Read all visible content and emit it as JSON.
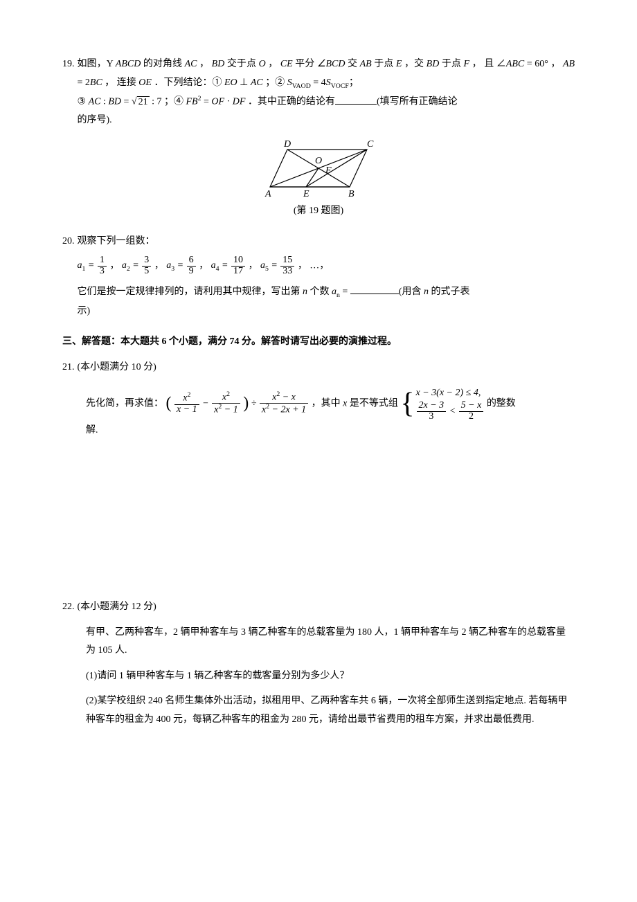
{
  "p19": {
    "num": "19.",
    "line1a": "如图，Y ",
    "m_ABCD": "ABCD",
    "line1b": " 的对角线 ",
    "m_AC": "AC",
    "line1c": " ， ",
    "m_BD": "BD",
    "line1d": " 交于点 ",
    "m_O": "O",
    "line1e": " ， ",
    "m_CE": "CE",
    "line1f": " 平分 ",
    "m_angBCD": "∠BCD",
    "line1g": " 交 ",
    "m_AB": "AB",
    "line1h": " 于点 ",
    "m_E": "E",
    "line1i": " ，交 ",
    "m_BD2": "BD",
    "line1j": " 于点",
    "line2a": "F",
    "line2b": " ， 且 ∠",
    "m_ABC": "ABC",
    "line2c": " = 60° ， ",
    "m_AB2": "AB",
    "line2d": " = 2",
    "m_BC": "BC",
    "line2e": " ， 连接 ",
    "m_OE": "OE",
    "line2f": " ．下列结论：① ",
    "m_EO": "EO",
    "line2g": " ⊥ ",
    "m_AC2": "AC",
    "line2h": " ；② ",
    "m_S1a": "S",
    "m_S1b": "VAOD",
    "line2i": " = 4",
    "m_S2a": "S",
    "m_S2b": "VOCF",
    "line2j": "；",
    "line3a": "③ ",
    "m_AC3": "AC",
    "line3b": " : ",
    "m_BD3": "BD",
    "line3c": " = ",
    "sqrt21": "21",
    "line3d": " : 7 ；④ ",
    "m_FB": "FB",
    "sup2": "2",
    "line3e": " = ",
    "m_OF": "OF",
    "line3f": " · ",
    "m_DF": "DF",
    "line3g": " ．其中正确的结论有",
    "line3h": "(填写所有正确结论",
    "line4": "的序号).",
    "caption": "(第 19 题图)",
    "fig": {
      "D": "D",
      "C": "C",
      "A": "A",
      "E": "E",
      "B": "B",
      "O": "O",
      "F": "F",
      "stroke": "#000000",
      "fill": "#ffffff"
    }
  },
  "p20": {
    "num": "20.",
    "line1": "观察下列一组数：",
    "seq": [
      {
        "name": "a",
        "sub": "1",
        "num": "1",
        "den": "3"
      },
      {
        "name": "a",
        "sub": "2",
        "num": "3",
        "den": "5"
      },
      {
        "name": "a",
        "sub": "3",
        "num": "6",
        "den": "9"
      },
      {
        "name": "a",
        "sub": "4",
        "num": "10",
        "den": "17"
      },
      {
        "name": "a",
        "sub": "5",
        "num": "15",
        "den": "33"
      }
    ],
    "sep": " ， ",
    "dots": "…，",
    "line2a": "它们是按一定规律排列的，请利用其中规律，写出第 ",
    "m_n": "n",
    "line2b": " 个数 ",
    "m_an_a": "a",
    "m_an_n": "n",
    "line2c": " = ",
    "line2d": "(用含 ",
    "line2e": " 的式子表",
    "line3": "示)"
  },
  "section3": "三、解答题：本大题共 6 个小题，满分 74 分。解答时请写出必要的演推过程。",
  "p21": {
    "num": "21.",
    "points": "(本小题满分 10 分)",
    "lead": "先化简，再求值：",
    "expr": {
      "f1_num": "x",
      "f1_num_sup": "2",
      "f1_den": "x − 1",
      "f2_num": "x",
      "f2_num_sup": "2",
      "f2_den_a": "x",
      "f2_den_sup": "2",
      "f2_den_b": " − 1",
      "div": " ÷ ",
      "f3_num_a": "x",
      "f3_num_sup": "2",
      "f3_num_b": " − x",
      "f3_den_a": "x",
      "f3_den_sup": "2",
      "f3_den_b": " − 2x + 1"
    },
    "mid": " ，其中 ",
    "m_x": "x",
    "mid2": " 是不等式组 ",
    "sys_line1": "x − 3(x − 2) ≤ 4,",
    "sys_f1_num": "2x − 3",
    "sys_f1_den": "3",
    "sys_lt": " < ",
    "sys_f2_num": "5 − x",
    "sys_f2_den": "2",
    "tail": " 的整数",
    "line2": "解."
  },
  "p22": {
    "num": "22.",
    "points": "(本小题满分 12 分)",
    "para1": "有甲、乙两种客车，2 辆甲种客车与 3 辆乙种客车的总载客量为 180 人，1 辆甲种客车与 2 辆乙种客车的总载客量为 105 人.",
    "q1": "(1)请问 1 辆甲种客车与 1 辆乙种客车的载客量分别为多少人？",
    "q2": "(2)某学校组织 240 名师生集体外出活动，拟租用甲、乙两种客车共 6 辆，一次将全部师生送到指定地点. 若每辆甲种客车的租金为 400 元，每辆乙种客车的租金为 280 元，请给出最节省费用的租车方案，并求出最低费用."
  }
}
